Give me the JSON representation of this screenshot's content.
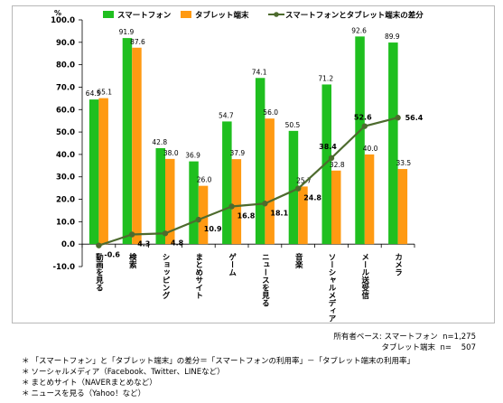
{
  "chart_data": {
    "type": "bar",
    "y_unit": "%",
    "ylim": [
      -10,
      100
    ],
    "yticks": [
      "100.0",
      "90.0",
      "80.0",
      "70.0",
      "60.0",
      "50.0",
      "40.0",
      "30.0",
      "20.0",
      "10.0",
      "0.0",
      "-10.0"
    ],
    "categories": [
      "動画を見る",
      "検索",
      "ショッピング",
      "まとめサイト",
      "ゲーム",
      "ニュースを見る",
      "音楽",
      "ソーシャルメディア",
      "メール送受信",
      "カメラ"
    ],
    "series": [
      {
        "name": "スマートフォン",
        "kind": "bar",
        "color": "#1fbf1f",
        "values": [
          64.5,
          91.9,
          42.8,
          36.9,
          54.7,
          74.1,
          50.5,
          71.2,
          92.6,
          89.9
        ],
        "labels": [
          "64.5",
          "91.9",
          "42.8",
          "36.9",
          "54.7",
          "74.1",
          "50.5",
          "71.2",
          "92.6",
          "89.9"
        ]
      },
      {
        "name": "タブレット端末",
        "kind": "bar",
        "color": "#ff9a12",
        "values": [
          65.1,
          87.6,
          38.0,
          26.0,
          37.9,
          56.0,
          25.7,
          32.8,
          40.0,
          33.5
        ],
        "labels": [
          "65.1",
          "87.6",
          "38.0",
          "26.0",
          "37.9",
          "56.0",
          "25.7",
          "32.8",
          "40.0",
          "33.5"
        ]
      },
      {
        "name": "スマートフォンとタブレット端末の差分",
        "kind": "line",
        "color": "#4d6b2e",
        "values": [
          -0.6,
          4.3,
          4.8,
          10.9,
          16.8,
          18.1,
          24.8,
          38.4,
          52.6,
          56.4
        ],
        "labels": [
          "-0.6",
          "4.3",
          "4.8",
          "10.9",
          "16.8",
          "18.1",
          "24.8",
          "38.4",
          "52.6",
          "56.4"
        ]
      }
    ],
    "legend_position": "top"
  },
  "base_note": {
    "label": "所有者ベース:",
    "line1": "スマートフォン  n=1,275",
    "line2": "タブレット端末  n=    507"
  },
  "notes": [
    "「スマートフォン」と「タブレット端末」の差分＝「スマートフォンの利用率」－「タブレット端末の利用率」",
    "ソーシャルメディア（Facebook、Twitter、LINEなど）",
    "まとめサイト（NAVERまとめなど）",
    "ニュースを見る（Yahoo！など）"
  ],
  "note_marker": "＊"
}
